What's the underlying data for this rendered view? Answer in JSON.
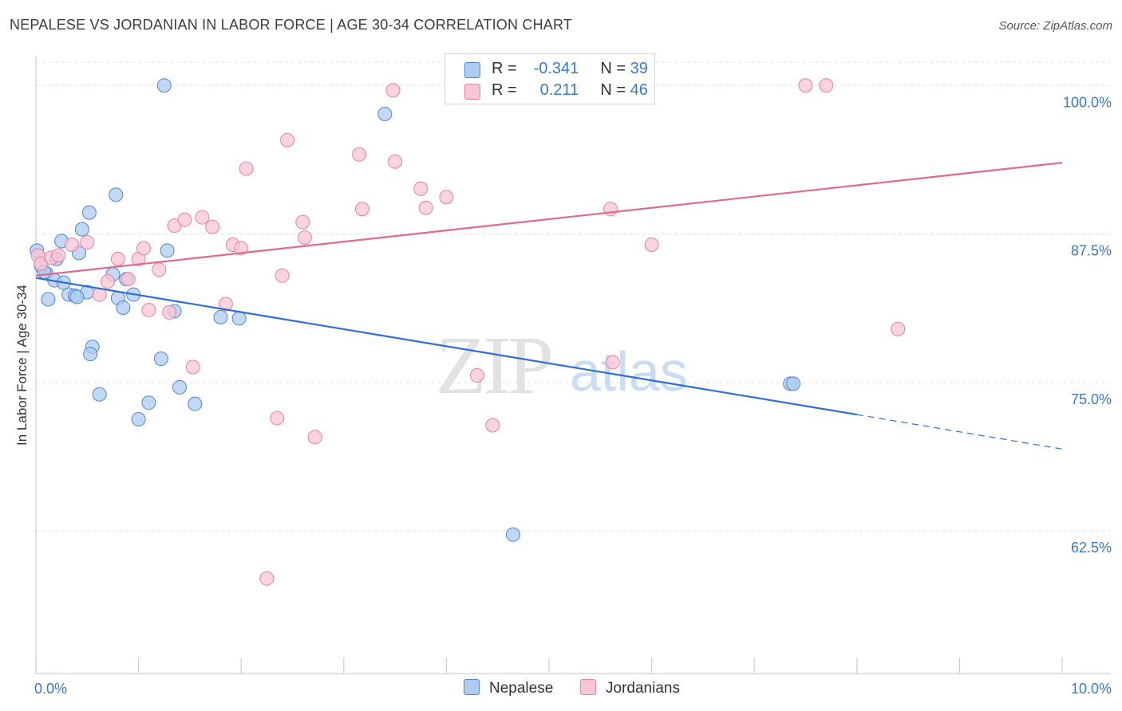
{
  "title": "NEPALESE VS JORDANIAN IN LABOR FORCE | AGE 30-34 CORRELATION CHART",
  "source": "Source: ZipAtlas.com",
  "watermark": {
    "zip": "ZIP",
    "atlas": "atlas"
  },
  "legend": {
    "r_label": "R =",
    "n_label": "N =",
    "rows": [
      {
        "r": "-0.341",
        "n": "39",
        "fill": "#aecbf2",
        "stroke": "#4f87cf"
      },
      {
        "r": "0.211",
        "n": "46",
        "fill": "#f9c6d6",
        "stroke": "#e8809f"
      }
    ]
  },
  "colors": {
    "blue_line": "#2d6fd1",
    "pink_line": "#e0698f",
    "axis_text": "#3a78c9",
    "grid": "#dddddd"
  },
  "chart_data": {
    "type": "scatter",
    "xlabel": "",
    "ylabel": "In Labor Force | Age 30-34",
    "xlim": [
      0.0,
      10.0
    ],
    "ylim": [
      50.5,
      102.5
    ],
    "x_tick_labels": [
      "0.0%",
      "10.0%"
    ],
    "y_ticks": [
      62.5,
      75.0,
      87.5,
      100.0
    ],
    "y_tick_labels": [
      "62.5%",
      "75.0%",
      "87.5%",
      "100.0%"
    ],
    "grid": true,
    "series": [
      {
        "name": "Nepalese",
        "fill": "#aecbf2",
        "stroke": "#4f87cf",
        "points": [
          [
            0.01,
            86.1
          ],
          [
            0.05,
            84.8
          ],
          [
            0.1,
            84.2
          ],
          [
            0.12,
            82.0
          ],
          [
            0.18,
            83.6
          ],
          [
            0.2,
            85.4
          ],
          [
            0.25,
            86.9
          ],
          [
            0.27,
            83.4
          ],
          [
            0.32,
            82.4
          ],
          [
            0.38,
            82.3
          ],
          [
            0.42,
            85.9
          ],
          [
            0.45,
            87.9
          ],
          [
            0.5,
            82.6
          ],
          [
            0.52,
            89.3
          ],
          [
            0.55,
            78.0
          ],
          [
            0.53,
            77.4
          ],
          [
            0.62,
            74.0
          ],
          [
            0.75,
            84.1
          ],
          [
            0.8,
            82.1
          ],
          [
            0.78,
            90.8
          ],
          [
            0.85,
            81.3
          ],
          [
            0.88,
            83.7
          ],
          [
            0.95,
            82.4
          ],
          [
            1.0,
            71.9
          ],
          [
            1.1,
            73.3
          ],
          [
            1.22,
            77.0
          ],
          [
            1.25,
            100.0
          ],
          [
            1.28,
            86.1
          ],
          [
            1.35,
            81.0
          ],
          [
            1.4,
            74.6
          ],
          [
            1.55,
            73.2
          ],
          [
            1.8,
            80.5
          ],
          [
            1.98,
            80.4
          ],
          [
            3.4,
            97.6
          ],
          [
            4.65,
            62.2
          ],
          [
            7.35,
            74.9
          ],
          [
            7.38,
            74.9
          ],
          [
            0.08,
            84.3
          ],
          [
            0.4,
            82.2
          ]
        ],
        "trend": {
          "x0": 0.0,
          "y0": 83.8,
          "x1": 8.0,
          "y1": 72.3,
          "x_dash_end": 10.0,
          "y_dash_end": 69.4
        }
      },
      {
        "name": "Jordanians",
        "fill": "#f9c6d6",
        "stroke": "#e8809f",
        "points": [
          [
            0.02,
            85.7
          ],
          [
            0.05,
            85.0
          ],
          [
            0.15,
            85.5
          ],
          [
            0.22,
            85.7
          ],
          [
            0.35,
            86.6
          ],
          [
            0.5,
            86.8
          ],
          [
            0.62,
            82.4
          ],
          [
            0.7,
            83.5
          ],
          [
            0.8,
            85.4
          ],
          [
            0.9,
            83.7
          ],
          [
            1.0,
            85.4
          ],
          [
            1.05,
            86.3
          ],
          [
            1.1,
            81.1
          ],
          [
            1.2,
            84.5
          ],
          [
            1.3,
            80.9
          ],
          [
            1.35,
            88.2
          ],
          [
            1.45,
            88.7
          ],
          [
            1.53,
            76.3
          ],
          [
            1.62,
            88.9
          ],
          [
            1.72,
            88.1
          ],
          [
            1.85,
            81.6
          ],
          [
            1.92,
            86.6
          ],
          [
            2.0,
            86.3
          ],
          [
            2.05,
            93.0
          ],
          [
            2.25,
            58.5
          ],
          [
            2.35,
            72.0
          ],
          [
            2.4,
            84.0
          ],
          [
            2.45,
            95.4
          ],
          [
            2.6,
            88.5
          ],
          [
            2.62,
            87.2
          ],
          [
            2.72,
            70.4
          ],
          [
            3.15,
            94.2
          ],
          [
            3.18,
            89.6
          ],
          [
            3.48,
            99.6
          ],
          [
            3.5,
            93.6
          ],
          [
            3.75,
            91.3
          ],
          [
            3.8,
            89.7
          ],
          [
            4.0,
            90.6
          ],
          [
            4.3,
            75.6
          ],
          [
            4.45,
            71.4
          ],
          [
            5.6,
            89.6
          ],
          [
            5.62,
            76.7
          ],
          [
            6.0,
            86.6
          ],
          [
            7.5,
            100.0
          ],
          [
            7.7,
            100.0
          ],
          [
            8.4,
            79.5
          ]
        ],
        "trend": {
          "x0": 0.0,
          "y0": 84.0,
          "x1": 10.0,
          "y1": 93.5
        }
      }
    ]
  }
}
